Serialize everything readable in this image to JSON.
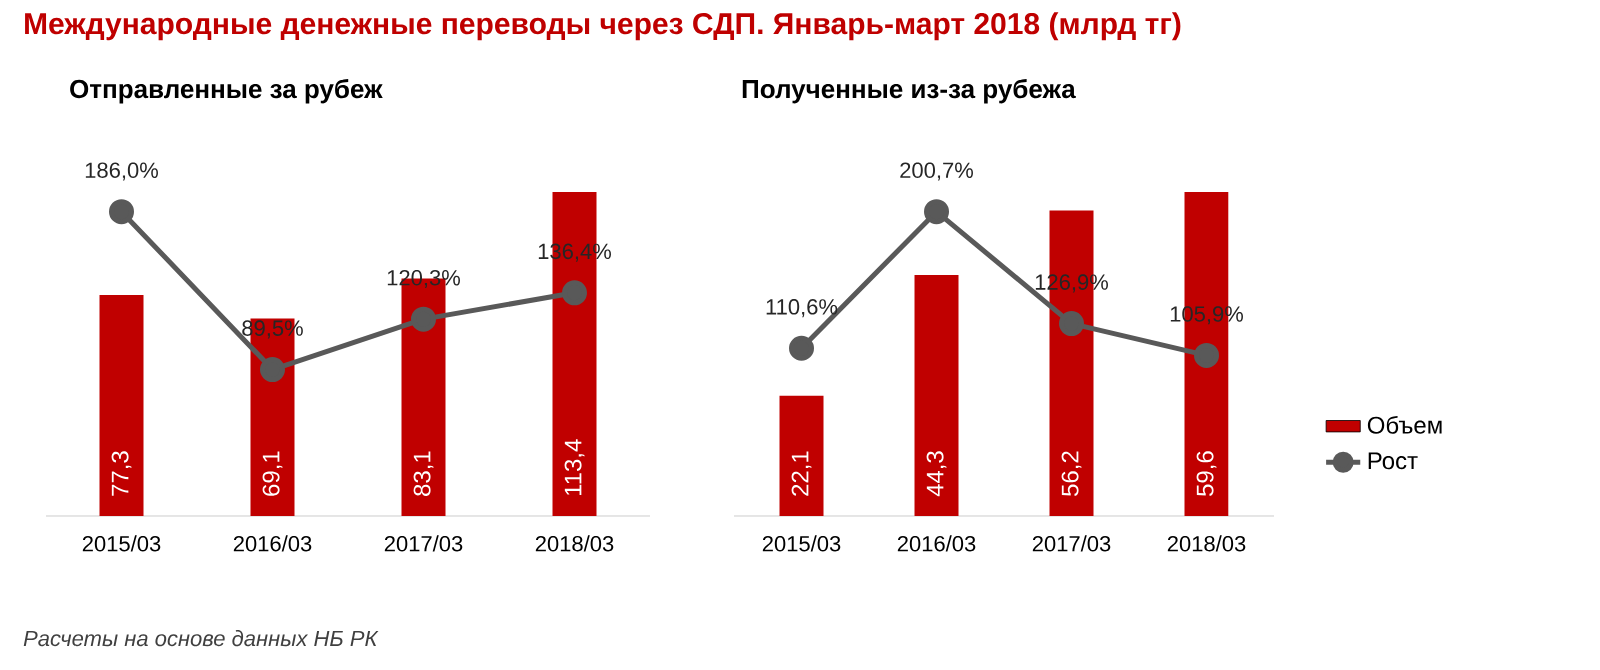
{
  "chart_data": [
    {
      "type": "bar",
      "title": "Международные денежные переводы через СДП. Январь-март 2018 (млрд тг)",
      "subtitle": "Отправленные за рубеж",
      "categories": [
        "2015/03",
        "2016/03",
        "2017/03",
        "2018/03"
      ],
      "marker": "circle",
      "data_labels": true,
      "series": [
        {
          "color": "#c00000",
          "values": [
            77.3,
            69.1,
            83.1,
            113.4
          ],
          "value_labels": [
            "77,3",
            "69,1",
            "83,1",
            "113,4"
          ]
        },
        {
          "type": "line",
          "axis": "y2",
          "color": "#595959",
          "values": [
            186.0,
            89.5,
            120.3,
            136.4
          ],
          "value_labels": [
            "186,0%",
            "89,5%",
            "120,3%",
            "136,4%"
          ]
        }
      ],
      "annotations": [
        "Расчеты на основе данных НБ РК"
      ]
    },
    {
      "type": "bar",
      "title": "Полученные из-за рубежа",
      "categories": [
        "2015/03",
        "2016/03",
        "2017/03",
        "2018/03"
      ],
      "marker": "circle",
      "data_labels": true,
      "legend": "right",
      "series": [
        {
          "name": "Объем",
          "color": "#c00000",
          "values": [
            22.1,
            44.3,
            56.2,
            59.6
          ],
          "value_labels": [
            "22,1",
            "44,3",
            "56,2",
            "59,6"
          ]
        },
        {
          "name": "Рост",
          "type": "line",
          "axis": "y2",
          "color": "#595959",
          "values": [
            110.6,
            200.7,
            126.9,
            105.9
          ],
          "value_labels": [
            "110,6%",
            "200,7%",
            "126,9%",
            "105,9%"
          ]
        }
      ]
    }
  ]
}
